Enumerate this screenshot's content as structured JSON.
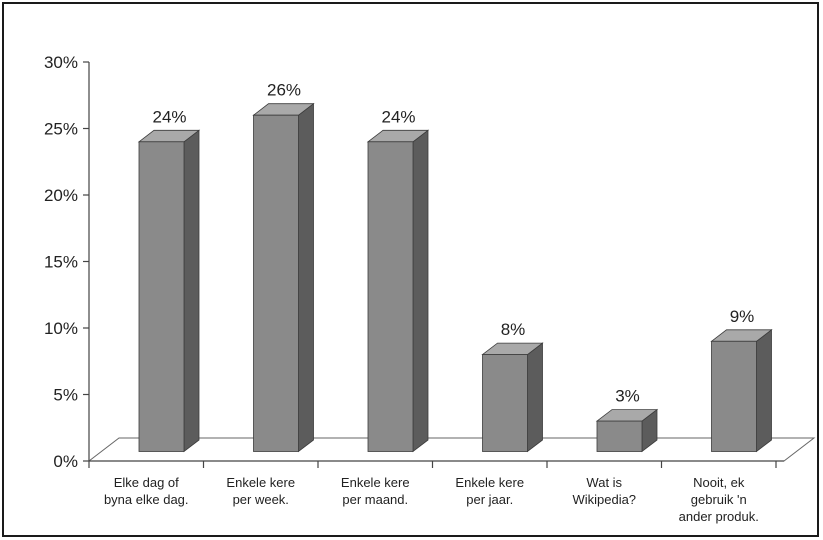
{
  "chart_data": {
    "type": "bar",
    "categories": [
      [
        "Elke dag of",
        "byna elke dag."
      ],
      [
        "Enkele kere",
        "per week."
      ],
      [
        "Enkele kere",
        "per maand."
      ],
      [
        "Enkele kere",
        "per jaar."
      ],
      [
        "Wat is",
        "Wikipedia?"
      ],
      [
        "Nooit, ek",
        "gebruik 'n",
        "ander produk."
      ]
    ],
    "values": [
      24,
      26,
      24,
      8,
      3,
      9
    ],
    "data_labels": [
      "24%",
      "26%",
      "24%",
      "8%",
      "3%",
      "9%"
    ],
    "ylim": [
      0,
      30
    ],
    "y_ticks": [
      0,
      5,
      10,
      15,
      20,
      25,
      30
    ],
    "y_tick_labels": [
      "0%",
      "5%",
      "10%",
      "15%",
      "20%",
      "25%",
      "30%"
    ],
    "title": "",
    "xlabel": "",
    "ylabel": "",
    "grid": false,
    "legend": "none",
    "three_d": true,
    "colors": {
      "bar_front": "#8a8a8a",
      "bar_side": "#5c5c5c",
      "bar_top": "#a9a9a9",
      "axis": "#444444",
      "floor_edge": "#666666"
    }
  }
}
